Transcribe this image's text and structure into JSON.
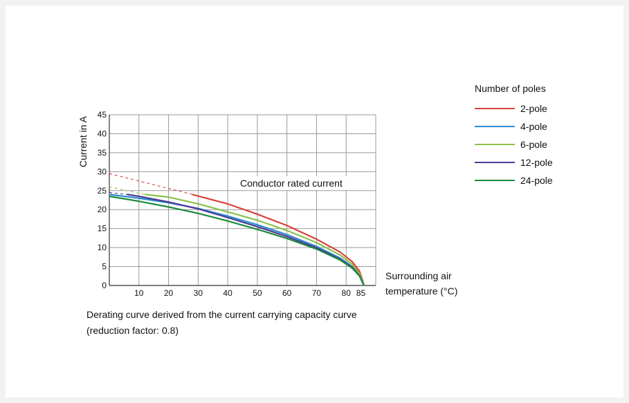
{
  "chart_data": {
    "type": "line",
    "title": "",
    "xlabel_lines": [
      "Surrounding air",
      "temperature (°C)"
    ],
    "ylabel": "Current in A",
    "xlim": [
      0,
      90
    ],
    "ylim": [
      0,
      45
    ],
    "grid": true,
    "x_ticks": [
      10,
      20,
      30,
      40,
      50,
      60,
      70,
      80,
      85
    ],
    "y_ticks": [
      0,
      5,
      10,
      15,
      20,
      25,
      30,
      35,
      40,
      45
    ],
    "annotation": "Conductor rated current",
    "legend": {
      "title": "Number of poles",
      "placement": "right"
    },
    "caption_lines": [
      "Derating curve derived from the current carrying capacity curve",
      "(reduction factor: 0.8)"
    ],
    "series": [
      {
        "name": "2-pole",
        "color": "#d9413a",
        "dashed": [
          [
            0,
            29.5
          ],
          [
            28,
            24
          ]
        ],
        "values": [
          [
            28,
            24
          ],
          [
            40,
            21.5
          ],
          [
            50,
            18.8
          ],
          [
            60,
            15.8
          ],
          [
            70,
            12.2
          ],
          [
            78,
            8.8
          ],
          [
            82,
            6.3
          ],
          [
            84.5,
            3.8
          ],
          [
            85.5,
            1.5
          ],
          [
            86,
            0
          ]
        ]
      },
      {
        "name": "4-pole",
        "color": "#2e8bd0",
        "dashed": [],
        "values": [
          [
            0,
            24
          ],
          [
            10,
            23
          ],
          [
            20,
            21.8
          ],
          [
            30,
            20.3
          ],
          [
            40,
            18.3
          ],
          [
            50,
            16.0
          ],
          [
            60,
            13.4
          ],
          [
            70,
            10.3
          ],
          [
            78,
            7.2
          ],
          [
            82,
            5.0
          ],
          [
            84.5,
            2.8
          ],
          [
            86,
            0
          ]
        ]
      },
      {
        "name": "6-pole",
        "color": "#8cc04a",
        "dashed": [
          [
            0,
            26.0
          ],
          [
            12,
            24
          ]
        ],
        "values": [
          [
            12,
            24
          ],
          [
            20,
            23.3
          ],
          [
            30,
            21.5
          ],
          [
            40,
            19.4
          ],
          [
            50,
            17.2
          ],
          [
            60,
            14.5
          ],
          [
            70,
            11.3
          ],
          [
            78,
            8.0
          ],
          [
            82,
            5.6
          ],
          [
            84.5,
            3.2
          ],
          [
            85.5,
            1.2
          ],
          [
            86,
            0
          ]
        ]
      },
      {
        "name": "12-pole",
        "color": "#4b3c94",
        "dashed": [
          [
            0,
            24.5
          ],
          [
            6,
            24
          ]
        ],
        "values": [
          [
            6,
            24
          ],
          [
            10,
            23.5
          ],
          [
            20,
            22.0
          ],
          [
            30,
            20.2
          ],
          [
            40,
            17.9
          ],
          [
            50,
            15.5
          ],
          [
            60,
            12.9
          ],
          [
            70,
            9.9
          ],
          [
            78,
            6.9
          ],
          [
            82,
            4.8
          ],
          [
            84.5,
            2.6
          ],
          [
            86,
            0
          ]
        ]
      },
      {
        "name": "24-pole",
        "color": "#1e8a3c",
        "dashed": [],
        "values": [
          [
            0,
            23.5
          ],
          [
            10,
            22.2
          ],
          [
            20,
            20.7
          ],
          [
            30,
            19.0
          ],
          [
            40,
            17.0
          ],
          [
            50,
            14.8
          ],
          [
            60,
            12.4
          ],
          [
            70,
            9.6
          ],
          [
            78,
            6.7
          ],
          [
            82,
            4.6
          ],
          [
            84.5,
            2.5
          ],
          [
            86,
            0
          ]
        ]
      }
    ]
  }
}
